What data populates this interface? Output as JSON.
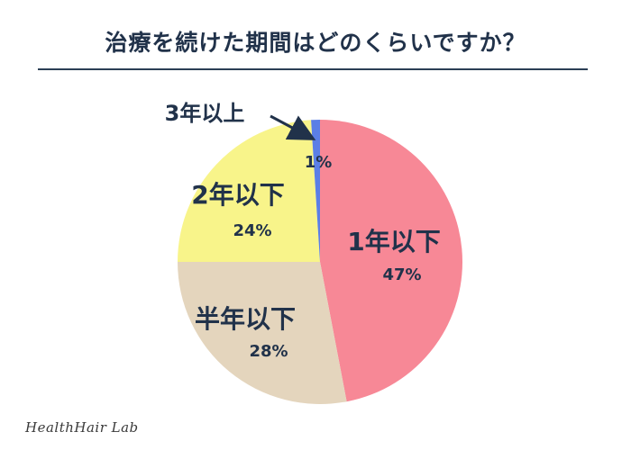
{
  "title": "治療を続けた期間はどのくらいですか？",
  "brand": "HealthHair Lab",
  "chart_data": {
    "type": "pie",
    "title": "治療を続けた期間はどのくらいですか？",
    "start_angle_deg": 0,
    "direction": "clockwise",
    "slices": [
      {
        "label": "1年以下",
        "value": 47,
        "value_label": "47%",
        "color": "#f78896"
      },
      {
        "label": "半年以下",
        "value": 28,
        "value_label": "28%",
        "color": "#e4d5bd"
      },
      {
        "label": "2年以下",
        "value": 24,
        "value_label": "24%",
        "color": "#f8f48a"
      },
      {
        "label": "3年以上",
        "value": 1,
        "value_label": "1%",
        "color": "#5b7fe6"
      }
    ]
  }
}
